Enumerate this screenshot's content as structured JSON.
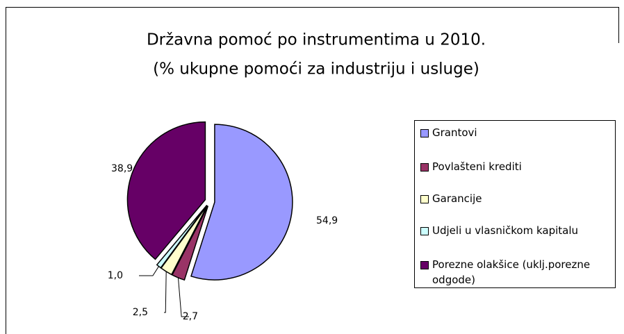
{
  "chart_data": {
    "type": "pie",
    "title": "Državna pomoć po instrumentima u 2010.",
    "subtitle": "(% ukupne pomoći za industriju i usluge)",
    "categories": [
      "Grantovi",
      "Povlašteni krediti",
      "Garancije",
      "Udjeli u vlasničkom kapitalu",
      "Porezne olakšice (uklj.porezne odgode)"
    ],
    "values": [
      54.9,
      2.7,
      2.5,
      1.0,
      38.9
    ],
    "value_labels": [
      "54,9",
      "2,7",
      "2,5",
      "1,0",
      "38,9"
    ],
    "colors": [
      "#9999ff",
      "#993366",
      "#ffffcc",
      "#ccffff",
      "#660066"
    ],
    "legend": "right"
  }
}
